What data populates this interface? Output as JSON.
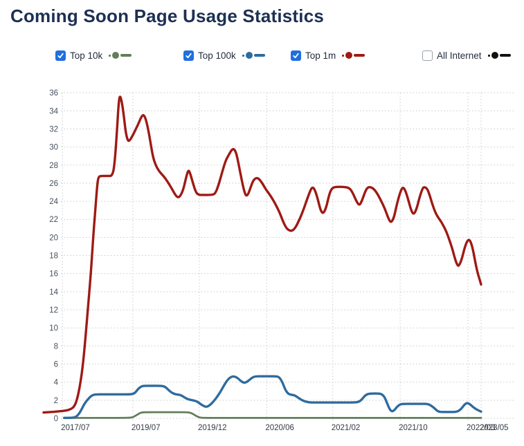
{
  "title": "Coming Soon Page Usage Statistics",
  "legend": {
    "items": [
      {
        "label": "Top 10k",
        "checked": true,
        "color": "#647d5a"
      },
      {
        "label": "Top 100k",
        "checked": true,
        "color": "#2e6b9e"
      },
      {
        "label": "Top 1m",
        "checked": true,
        "color": "#9e1a15"
      },
      {
        "label": "All Internet",
        "checked": false,
        "color": "#111111"
      }
    ]
  },
  "chart_data": {
    "type": "line",
    "title": "Coming Soon Page Usage Statistics",
    "xlabel": "",
    "ylabel": "",
    "ylim": [
      0,
      36
    ],
    "y_ticks": [
      0,
      2,
      4,
      6,
      8,
      10,
      12,
      14,
      16,
      18,
      20,
      22,
      24,
      26,
      28,
      30,
      32,
      34,
      36
    ],
    "grid": true,
    "grid_style": "dotted",
    "legend_position": "top",
    "x_ticks": [
      {
        "label": "2017/07",
        "pos": 0.043
      },
      {
        "label": "2019/07",
        "pos": 0.204
      },
      {
        "label": "2019/12",
        "pos": 0.356
      },
      {
        "label": "2020/06",
        "pos": 0.51
      },
      {
        "label": "2021/02",
        "pos": 0.661
      },
      {
        "label": "2021/10",
        "pos": 0.815
      },
      {
        "label": "2022/03",
        "pos": 0.97
      },
      {
        "label": "2023/05",
        "pos": 1.0
      }
    ],
    "series": [
      {
        "name": "Top 1m",
        "color": "#9e1a15",
        "visible": true,
        "width": 3.4,
        "points": [
          [
            0.0,
            0.65
          ],
          [
            0.019,
            0.7
          ],
          [
            0.04,
            0.8
          ],
          [
            0.051,
            0.85
          ],
          [
            0.062,
            1.0
          ],
          [
            0.07,
            1.3
          ],
          [
            0.076,
            2.0
          ],
          [
            0.082,
            3.3
          ],
          [
            0.089,
            5.5
          ],
          [
            0.095,
            8.5
          ],
          [
            0.101,
            12.0
          ],
          [
            0.108,
            16.0
          ],
          [
            0.114,
            20.5
          ],
          [
            0.119,
            23.5
          ],
          [
            0.122,
            25.5
          ],
          [
            0.125,
            26.7
          ],
          [
            0.131,
            26.8
          ],
          [
            0.146,
            26.8
          ],
          [
            0.158,
            26.8
          ],
          [
            0.163,
            28.5
          ],
          [
            0.168,
            32.0
          ],
          [
            0.171,
            34.5
          ],
          [
            0.174,
            35.8
          ],
          [
            0.179,
            35.0
          ],
          [
            0.184,
            33.2
          ],
          [
            0.188,
            31.5
          ],
          [
            0.193,
            30.6
          ],
          [
            0.198,
            30.8
          ],
          [
            0.204,
            31.3
          ],
          [
            0.21,
            31.9
          ],
          [
            0.217,
            32.6
          ],
          [
            0.223,
            33.3
          ],
          [
            0.228,
            33.6
          ],
          [
            0.233,
            33.2
          ],
          [
            0.239,
            32.0
          ],
          [
            0.245,
            30.3
          ],
          [
            0.25,
            28.9
          ],
          [
            0.256,
            28.0
          ],
          [
            0.264,
            27.3
          ],
          [
            0.274,
            26.8
          ],
          [
            0.283,
            26.2
          ],
          [
            0.293,
            25.4
          ],
          [
            0.301,
            24.7
          ],
          [
            0.307,
            24.4
          ],
          [
            0.313,
            24.6
          ],
          [
            0.32,
            25.4
          ],
          [
            0.326,
            26.7
          ],
          [
            0.331,
            27.5
          ],
          [
            0.335,
            27.1
          ],
          [
            0.342,
            25.9
          ],
          [
            0.348,
            25.0
          ],
          [
            0.354,
            24.7
          ],
          [
            0.367,
            24.7
          ],
          [
            0.383,
            24.7
          ],
          [
            0.392,
            24.8
          ],
          [
            0.4,
            25.8
          ],
          [
            0.408,
            27.2
          ],
          [
            0.416,
            28.5
          ],
          [
            0.424,
            29.2
          ],
          [
            0.43,
            29.7
          ],
          [
            0.435,
            29.8
          ],
          [
            0.44,
            29.4
          ],
          [
            0.445,
            28.3
          ],
          [
            0.451,
            26.8
          ],
          [
            0.457,
            25.4
          ],
          [
            0.462,
            24.6
          ],
          [
            0.467,
            24.7
          ],
          [
            0.473,
            25.5
          ],
          [
            0.479,
            26.3
          ],
          [
            0.486,
            26.6
          ],
          [
            0.492,
            26.5
          ],
          [
            0.5,
            26.0
          ],
          [
            0.508,
            25.3
          ],
          [
            0.516,
            24.8
          ],
          [
            0.524,
            24.2
          ],
          [
            0.532,
            23.5
          ],
          [
            0.54,
            22.7
          ],
          [
            0.547,
            21.8
          ],
          [
            0.554,
            21.1
          ],
          [
            0.56,
            20.8
          ],
          [
            0.568,
            20.7
          ],
          [
            0.576,
            21.1
          ],
          [
            0.584,
            21.9
          ],
          [
            0.592,
            22.8
          ],
          [
            0.6,
            23.9
          ],
          [
            0.608,
            25.0
          ],
          [
            0.614,
            25.6
          ],
          [
            0.62,
            25.3
          ],
          [
            0.627,
            24.2
          ],
          [
            0.633,
            23.0
          ],
          [
            0.639,
            22.6
          ],
          [
            0.646,
            23.3
          ],
          [
            0.652,
            24.6
          ],
          [
            0.658,
            25.4
          ],
          [
            0.666,
            25.6
          ],
          [
            0.684,
            25.6
          ],
          [
            0.699,
            25.5
          ],
          [
            0.707,
            24.9
          ],
          [
            0.715,
            24.0
          ],
          [
            0.722,
            23.5
          ],
          [
            0.728,
            24.1
          ],
          [
            0.736,
            25.2
          ],
          [
            0.742,
            25.6
          ],
          [
            0.752,
            25.5
          ],
          [
            0.761,
            25.0
          ],
          [
            0.77,
            24.2
          ],
          [
            0.78,
            23.2
          ],
          [
            0.788,
            22.1
          ],
          [
            0.794,
            21.6
          ],
          [
            0.801,
            22.2
          ],
          [
            0.807,
            23.6
          ],
          [
            0.815,
            25.0
          ],
          [
            0.821,
            25.6
          ],
          [
            0.827,
            25.2
          ],
          [
            0.834,
            24.1
          ],
          [
            0.84,
            23.0
          ],
          [
            0.846,
            22.5
          ],
          [
            0.853,
            23.2
          ],
          [
            0.859,
            24.4
          ],
          [
            0.866,
            25.4
          ],
          [
            0.87,
            25.6
          ],
          [
            0.877,
            25.4
          ],
          [
            0.883,
            24.6
          ],
          [
            0.889,
            23.6
          ],
          [
            0.896,
            22.7
          ],
          [
            0.902,
            22.2
          ],
          [
            0.908,
            21.8
          ],
          [
            0.915,
            21.2
          ],
          [
            0.921,
            20.6
          ],
          [
            0.927,
            19.8
          ],
          [
            0.934,
            18.8
          ],
          [
            0.94,
            17.7
          ],
          [
            0.945,
            17.0
          ],
          [
            0.949,
            16.8
          ],
          [
            0.956,
            17.6
          ],
          [
            0.962,
            18.8
          ],
          [
            0.968,
            19.6
          ],
          [
            0.973,
            19.8
          ],
          [
            0.978,
            19.3
          ],
          [
            0.983,
            18.3
          ],
          [
            0.987,
            17.2
          ],
          [
            0.992,
            16.1
          ],
          [
            0.997,
            15.3
          ],
          [
            1.0,
            14.8
          ]
        ]
      },
      {
        "name": "Top 10k",
        "color": "#647d5a",
        "visible": true,
        "width": 2.8,
        "points": [
          [
            0.047,
            0.05
          ],
          [
            0.138,
            0.05
          ],
          [
            0.185,
            0.05
          ],
          [
            0.201,
            0.08
          ],
          [
            0.207,
            0.2
          ],
          [
            0.214,
            0.4
          ],
          [
            0.22,
            0.58
          ],
          [
            0.226,
            0.67
          ],
          [
            0.241,
            0.68
          ],
          [
            0.264,
            0.68
          ],
          [
            0.288,
            0.68
          ],
          [
            0.309,
            0.68
          ],
          [
            0.322,
            0.68
          ],
          [
            0.332,
            0.66
          ],
          [
            0.339,
            0.55
          ],
          [
            0.345,
            0.38
          ],
          [
            0.351,
            0.2
          ],
          [
            0.358,
            0.08
          ],
          [
            0.364,
            0.05
          ],
          [
            0.407,
            0.05
          ],
          [
            0.533,
            0.05
          ],
          [
            0.66,
            0.05
          ],
          [
            0.786,
            0.05
          ],
          [
            0.913,
            0.05
          ],
          [
            1.0,
            0.05
          ]
        ]
      },
      {
        "name": "Top 100k",
        "color": "#2e6b9e",
        "visible": true,
        "width": 3.4,
        "points": [
          [
            0.047,
            0.05
          ],
          [
            0.066,
            0.05
          ],
          [
            0.074,
            0.15
          ],
          [
            0.081,
            0.5
          ],
          [
            0.087,
            1.0
          ],
          [
            0.093,
            1.6
          ],
          [
            0.101,
            2.1
          ],
          [
            0.109,
            2.5
          ],
          [
            0.117,
            2.65
          ],
          [
            0.138,
            2.65
          ],
          [
            0.169,
            2.65
          ],
          [
            0.201,
            2.65
          ],
          [
            0.209,
            2.8
          ],
          [
            0.215,
            3.2
          ],
          [
            0.222,
            3.5
          ],
          [
            0.228,
            3.6
          ],
          [
            0.248,
            3.6
          ],
          [
            0.269,
            3.6
          ],
          [
            0.278,
            3.5
          ],
          [
            0.286,
            3.1
          ],
          [
            0.294,
            2.8
          ],
          [
            0.302,
            2.65
          ],
          [
            0.312,
            2.6
          ],
          [
            0.318,
            2.45
          ],
          [
            0.324,
            2.25
          ],
          [
            0.331,
            2.1
          ],
          [
            0.34,
            2.0
          ],
          [
            0.35,
            1.9
          ],
          [
            0.358,
            1.6
          ],
          [
            0.366,
            1.35
          ],
          [
            0.373,
            1.25
          ],
          [
            0.381,
            1.5
          ],
          [
            0.389,
            1.9
          ],
          [
            0.397,
            2.4
          ],
          [
            0.405,
            3.0
          ],
          [
            0.413,
            3.7
          ],
          [
            0.421,
            4.3
          ],
          [
            0.429,
            4.6
          ],
          [
            0.435,
            4.65
          ],
          [
            0.443,
            4.5
          ],
          [
            0.451,
            4.1
          ],
          [
            0.459,
            3.9
          ],
          [
            0.467,
            4.1
          ],
          [
            0.475,
            4.45
          ],
          [
            0.483,
            4.65
          ],
          [
            0.502,
            4.65
          ],
          [
            0.521,
            4.65
          ],
          [
            0.53,
            4.65
          ],
          [
            0.538,
            4.6
          ],
          [
            0.546,
            4.0
          ],
          [
            0.552,
            3.2
          ],
          [
            0.559,
            2.7
          ],
          [
            0.567,
            2.6
          ],
          [
            0.574,
            2.55
          ],
          [
            0.584,
            2.2
          ],
          [
            0.593,
            1.95
          ],
          [
            0.603,
            1.8
          ],
          [
            0.612,
            1.75
          ],
          [
            0.636,
            1.75
          ],
          [
            0.66,
            1.75
          ],
          [
            0.684,
            1.75
          ],
          [
            0.707,
            1.75
          ],
          [
            0.72,
            1.8
          ],
          [
            0.728,
            2.1
          ],
          [
            0.734,
            2.5
          ],
          [
            0.741,
            2.7
          ],
          [
            0.752,
            2.75
          ],
          [
            0.764,
            2.75
          ],
          [
            0.772,
            2.7
          ],
          [
            0.779,
            2.4
          ],
          [
            0.785,
            1.7
          ],
          [
            0.791,
            1.0
          ],
          [
            0.796,
            0.75
          ],
          [
            0.802,
            0.9
          ],
          [
            0.808,
            1.3
          ],
          [
            0.815,
            1.55
          ],
          [
            0.821,
            1.6
          ],
          [
            0.842,
            1.6
          ],
          [
            0.866,
            1.6
          ],
          [
            0.878,
            1.6
          ],
          [
            0.886,
            1.4
          ],
          [
            0.894,
            1.1
          ],
          [
            0.9,
            0.8
          ],
          [
            0.907,
            0.7
          ],
          [
            0.921,
            0.7
          ],
          [
            0.937,
            0.7
          ],
          [
            0.946,
            0.75
          ],
          [
            0.954,
            1.0
          ],
          [
            0.96,
            1.4
          ],
          [
            0.965,
            1.65
          ],
          [
            0.97,
            1.7
          ],
          [
            0.976,
            1.5
          ],
          [
            0.983,
            1.2
          ],
          [
            0.989,
            1.0
          ],
          [
            0.995,
            0.85
          ],
          [
            1.0,
            0.75
          ]
        ]
      },
      {
        "name": "All Internet",
        "color": "#111111",
        "visible": false,
        "width": 3.0,
        "points": []
      }
    ]
  }
}
